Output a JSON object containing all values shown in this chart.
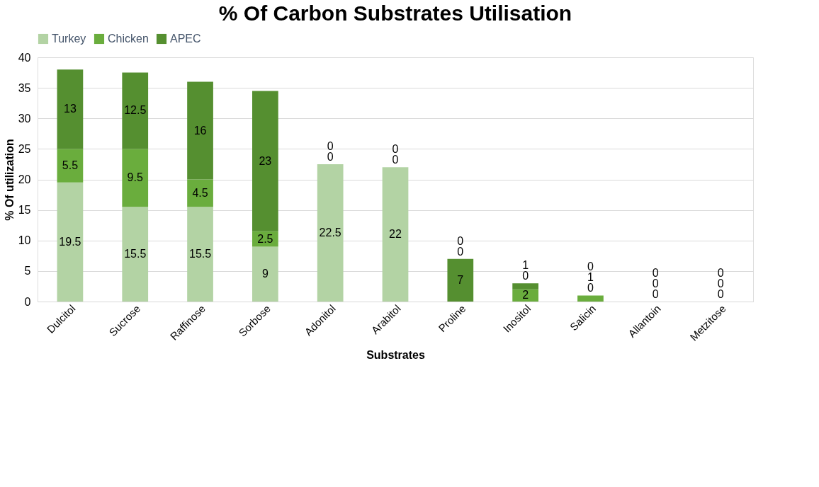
{
  "chart_data": {
    "type": "bar",
    "stacked": true,
    "title": "% Of Carbon Substrates Utilisation",
    "xlabel": "Substrates",
    "ylabel": "% Of utilization",
    "categories": [
      "Dulcitol",
      "Sucrose",
      "Raffinose",
      "Sorbose",
      "Adonitol",
      "Arabitol",
      "Proline",
      "Inositol",
      "Salicin",
      "Allantoin",
      "Metzitose"
    ],
    "series": [
      {
        "name": "Turkey",
        "color": "#b3d3a4",
        "values": [
          19.5,
          15.5,
          15.5,
          9,
          22.5,
          22,
          0,
          0,
          0,
          0,
          0
        ]
      },
      {
        "name": "Chicken",
        "color": "#6aad3d",
        "values": [
          5.5,
          9.5,
          4.5,
          2.5,
          0,
          0,
          0,
          2,
          1,
          0,
          0
        ]
      },
      {
        "name": "APEC",
        "color": "#558f30",
        "values": [
          13,
          12.5,
          16,
          23,
          0,
          0,
          7,
          1,
          0,
          0,
          0
        ]
      }
    ],
    "ylim": [
      0,
      40
    ],
    "yticks": [
      0,
      5,
      10,
      15,
      20,
      25,
      30,
      35,
      40
    ],
    "grid": "y",
    "legend": "top",
    "data_labels": true
  }
}
